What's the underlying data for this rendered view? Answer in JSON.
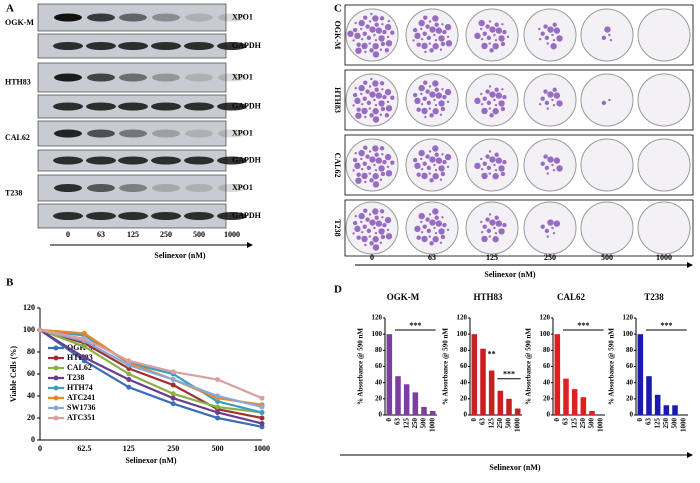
{
  "panel_labels": [
    "A",
    "B",
    "C",
    "D"
  ],
  "blot": {
    "cell_lines": [
      "OGK-M",
      "HTH83",
      "CAL62",
      "T238"
    ],
    "proteins": [
      "XPO1",
      "GAPDH"
    ],
    "doses": [
      "0",
      "63",
      "125",
      "250",
      "500",
      "1000"
    ],
    "xlabel": "Selinexor (nM)"
  },
  "colony": {
    "cell_lines": [
      "OGK-M",
      "HTH83",
      "CAL62",
      "T238"
    ],
    "doses": [
      "0",
      "63",
      "125",
      "250",
      "500",
      "1000"
    ],
    "xlabel": "Selinexor (nM)"
  },
  "panel_d_xlabel": "Selinexor (nM)",
  "chart_data": [
    {
      "type": "line",
      "xlabel": "Selinexor (nM)",
      "ylabel": "Viable Cells (%)",
      "categories": [
        "0",
        "62.5",
        "125",
        "250",
        "500",
        "1000"
      ],
      "ylim": [
        0,
        120
      ],
      "yticks": [
        0,
        20,
        40,
        60,
        80,
        100,
        120
      ],
      "series": [
        {
          "name": "OGK-M",
          "color": "#3a6fb5",
          "values": [
            100,
            72,
            48,
            33,
            20,
            12
          ]
        },
        {
          "name": "HTH83",
          "color": "#a03030",
          "values": [
            100,
            88,
            65,
            50,
            28,
            20
          ]
        },
        {
          "name": "CAL62",
          "color": "#8ab04a",
          "values": [
            100,
            85,
            60,
            42,
            30,
            25
          ]
        },
        {
          "name": "T238",
          "color": "#6a3d8f",
          "values": [
            100,
            75,
            55,
            38,
            25,
            15
          ]
        },
        {
          "name": "HTH74",
          "color": "#3aa0c0",
          "values": [
            100,
            95,
            70,
            60,
            35,
            25
          ]
        },
        {
          "name": "ATC241",
          "color": "#e8862a",
          "values": [
            100,
            97,
            70,
            55,
            38,
            32
          ]
        },
        {
          "name": "SW1736",
          "color": "#8aa8d8",
          "values": [
            100,
            90,
            68,
            55,
            40,
            30
          ]
        },
        {
          "name": "ATC351",
          "color": "#d8a0a0",
          "values": [
            100,
            92,
            72,
            62,
            55,
            38
          ]
        }
      ]
    },
    {
      "type": "bar",
      "title": "OGK-M",
      "ylabel": "% Absorbance @ 590 nM",
      "categories": [
        "0",
        "63",
        "125",
        "250",
        "500",
        "1000"
      ],
      "values": [
        100,
        48,
        38,
        28,
        10,
        5
      ],
      "color": "#7b3fa0",
      "ylim": [
        0,
        120
      ],
      "yticks": [
        0,
        20,
        40,
        60,
        80,
        100,
        120
      ],
      "annotations": [
        "***"
      ]
    },
    {
      "type": "bar",
      "title": "HTH83",
      "ylabel": "% Absorbance @ 590 nM",
      "categories": [
        "0",
        "63",
        "125",
        "250",
        "500",
        "1000"
      ],
      "values": [
        100,
        82,
        55,
        30,
        20,
        8
      ],
      "color": "#c82020",
      "ylim": [
        0,
        120
      ],
      "yticks": [
        0,
        20,
        40,
        60,
        80,
        100,
        120
      ],
      "annotations": [
        "**",
        "***"
      ]
    },
    {
      "type": "bar",
      "title": "CAL62",
      "ylabel": "% Absorbance @ 590 nM",
      "categories": [
        "0",
        "63",
        "125",
        "250",
        "500",
        "1000"
      ],
      "values": [
        100,
        45,
        32,
        22,
        5,
        0
      ],
      "color": "#e02020",
      "ylim": [
        0,
        120
      ],
      "yticks": [
        0,
        20,
        40,
        60,
        80,
        100,
        120
      ],
      "annotations": [
        "***"
      ]
    },
    {
      "type": "bar",
      "title": "T238",
      "ylabel": "% Absorbance @ 590 nM",
      "categories": [
        "0",
        "63",
        "125",
        "250",
        "500",
        "1000"
      ],
      "values": [
        100,
        48,
        25,
        12,
        12,
        0
      ],
      "color": "#1a1ab0",
      "ylim": [
        0,
        120
      ],
      "yticks": [
        0,
        20,
        40,
        60,
        80,
        100,
        120
      ],
      "annotations": [
        "***"
      ]
    }
  ]
}
